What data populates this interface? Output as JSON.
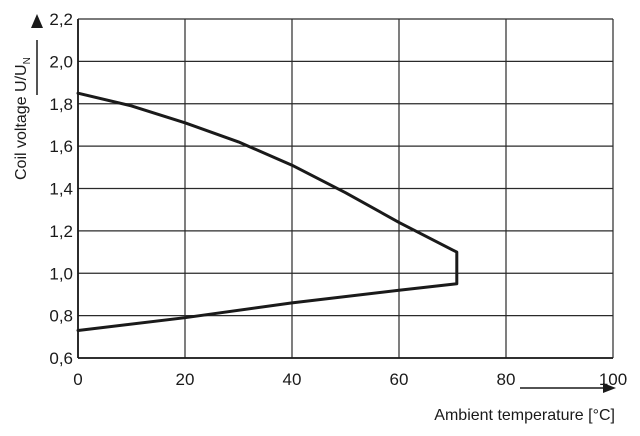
{
  "chart_data": {
    "type": "line",
    "xlabel": "Ambient temperature [°C]",
    "ylabel": "Coil voltage U/U",
    "ylabel_subscript": "N",
    "xlim": [
      0,
      100
    ],
    "ylim": [
      0.6,
      2.2
    ],
    "x_ticks": [
      0,
      20,
      40,
      60,
      80,
      100
    ],
    "y_ticks": [
      0.6,
      0.8,
      1.0,
      1.2,
      1.4,
      1.6,
      1.8,
      2.0,
      2.2
    ],
    "x_tick_labels": [
      "0",
      "20",
      "40",
      "60",
      "80",
      "100"
    ],
    "y_tick_labels": [
      "0,6",
      "0,8",
      "1,0",
      "1,2",
      "1,4",
      "1,6",
      "1,8",
      "2,0",
      "2,2"
    ],
    "grid": true,
    "series": [
      {
        "values": [
          [
            0,
            1.85
          ],
          [
            10,
            1.79
          ],
          [
            20,
            1.71
          ],
          [
            30,
            1.62
          ],
          [
            40,
            1.51
          ],
          [
            50,
            1.38
          ],
          [
            60,
            1.24
          ],
          [
            70,
            1.11
          ],
          [
            70.8,
            1.1
          ],
          [
            70.8,
            0.95
          ],
          [
            60,
            0.92
          ],
          [
            40,
            0.86
          ],
          [
            20,
            0.79
          ],
          [
            0,
            0.73
          ]
        ]
      }
    ],
    "colors": {
      "line": "#1a1a1a",
      "grid": "#2a2a2a",
      "text": "#1a1a1a"
    }
  }
}
